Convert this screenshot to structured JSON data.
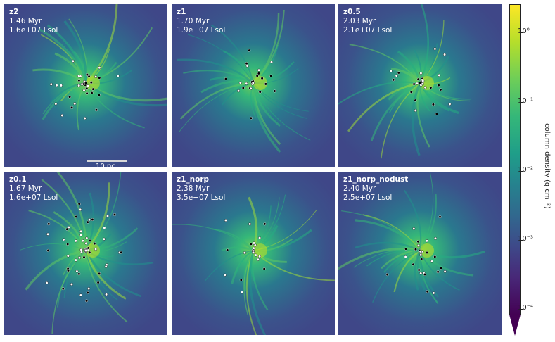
{
  "panels": [
    {
      "name": "z2",
      "time": "1.46 Myr",
      "lum": "1.6e+07 Lsol",
      "scale": "10 pc"
    },
    {
      "name": "z1",
      "time": "1.70 Myr",
      "lum": "1.9e+07 Lsol"
    },
    {
      "name": "z0.5",
      "time": "2.03 Myr",
      "lum": "2.1e+07 Lsol"
    },
    {
      "name": "z0.1",
      "time": "1.67 Myr",
      "lum": "1.6e+07 Lsol"
    },
    {
      "name": "z1_norp",
      "time": "2.38 Myr",
      "lum": "3.5e+07 Lsol"
    },
    {
      "name": "z1_norp_nodust",
      "time": "2.40 Myr",
      "lum": "2.5e+07 Lsol"
    }
  ],
  "colorbar": {
    "label": "column density (g cm⁻²)",
    "ticks": [
      "10⁰",
      "10⁻¹",
      "10⁻²",
      "10⁻³",
      "10⁻⁴"
    ],
    "colormap": "viridis",
    "scale": "log"
  }
}
